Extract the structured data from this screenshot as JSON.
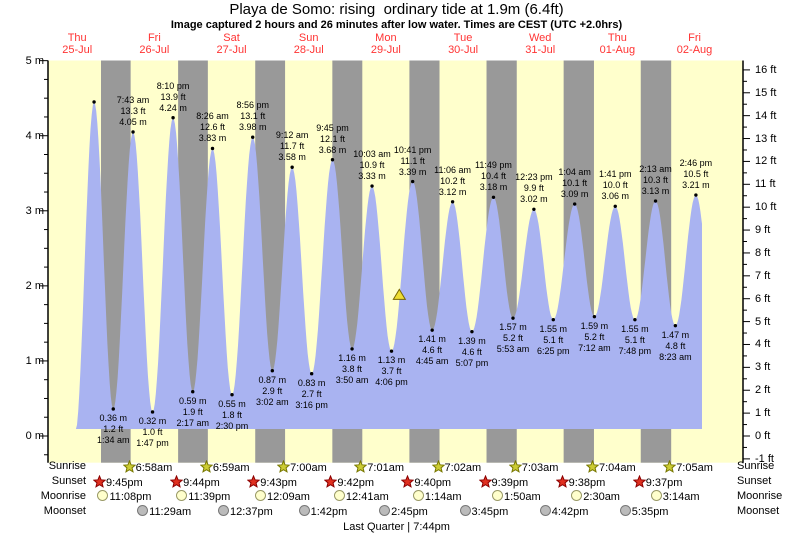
{
  "chart_data": {
    "type": "area",
    "title": "Playa de Somo: rising  ordinary tide at 1.9m (6.4ft)",
    "subtitle": "Image captured 2 hours and 26 minutes after low water. Times are CEST (UTC +2.0hrs)",
    "days": [
      {
        "day": "Thu",
        "date": "25-Jul"
      },
      {
        "day": "Fri",
        "date": "26-Jul"
      },
      {
        "day": "Sat",
        "date": "27-Jul"
      },
      {
        "day": "Sun",
        "date": "28-Jul"
      },
      {
        "day": "Mon",
        "date": "29-Jul"
      },
      {
        "day": "Tue",
        "date": "30-Jul"
      },
      {
        "day": "Wed",
        "date": "31-Jul"
      },
      {
        "day": "Thu",
        "date": "01-Aug"
      },
      {
        "day": "Fri",
        "date": "02-Aug"
      }
    ],
    "y_axis_left": {
      "unit": "m",
      "ticks": [
        "5 m",
        "4 m",
        "3 m",
        "2 m",
        "1 m",
        "0 m"
      ],
      "values": [
        5,
        4,
        3,
        2,
        1,
        0
      ]
    },
    "y_axis_right": {
      "unit": "ft",
      "ticks": [
        "16 ft",
        "15 ft",
        "14 ft",
        "13 ft",
        "12 ft",
        "11 ft",
        "10 ft",
        "9 ft",
        "8 ft",
        "7 ft",
        "6 ft",
        "5 ft",
        "4 ft",
        "3 ft",
        "2 ft",
        "1 ft",
        "0 ft",
        "-1 ft"
      ],
      "values": [
        16,
        15,
        14,
        13,
        12,
        11,
        10,
        9,
        8,
        7,
        6,
        5,
        4,
        3,
        2,
        1,
        0,
        -1
      ]
    },
    "tide_events": [
      {
        "type": "high",
        "t": 19.6,
        "m": 4.45
      },
      {
        "type": "low",
        "t": 25.567,
        "m": 0.36,
        "labels": [
          "0.36 m",
          "1.2 ft",
          "1:34 am"
        ]
      },
      {
        "type": "high",
        "t": 31.717,
        "m": 4.05,
        "labels": [
          "7:43 am",
          "13.3 ft",
          "4.05 m"
        ]
      },
      {
        "type": "low",
        "t": 37.783,
        "m": 0.32,
        "labels": [
          "0.32 m",
          "1.0 ft",
          "1:47 pm"
        ]
      },
      {
        "type": "high",
        "t": 44.167,
        "m": 4.24,
        "labels": [
          "8:10 pm",
          "13.9 ft",
          "4.24 m"
        ]
      },
      {
        "type": "low",
        "t": 50.283,
        "m": 0.59,
        "labels": [
          "0.59 m",
          "1.9 ft",
          "2:17 am"
        ]
      },
      {
        "type": "high",
        "t": 56.433,
        "m": 3.83,
        "labels": [
          "8:26 am",
          "12.6 ft",
          "3.83 m"
        ]
      },
      {
        "type": "low",
        "t": 62.5,
        "m": 0.55,
        "labels": [
          "0.55 m",
          "1.8 ft",
          "2:30 pm"
        ]
      },
      {
        "type": "high",
        "t": 68.933,
        "m": 3.98,
        "labels": [
          "8:56 pm",
          "13.1 ft",
          "3.98 m"
        ]
      },
      {
        "type": "low",
        "t": 75.033,
        "m": 0.87,
        "labels": [
          "0.87 m",
          "2.9 ft",
          "3:02 am"
        ]
      },
      {
        "type": "high",
        "t": 81.2,
        "m": 3.58,
        "labels": [
          "9:12 am",
          "11.7 ft",
          "3.58 m"
        ]
      },
      {
        "type": "low",
        "t": 87.267,
        "m": 0.83,
        "labels": [
          "0.83 m",
          "2.7 ft",
          "3:16 pm"
        ]
      },
      {
        "type": "high",
        "t": 93.75,
        "m": 3.68,
        "labels": [
          "9:45 pm",
          "12.1 ft",
          "3.68 m"
        ]
      },
      {
        "type": "low",
        "t": 99.833,
        "m": 1.16,
        "labels": [
          "1.16 m",
          "3.8 ft",
          "3:50 am"
        ]
      },
      {
        "type": "high",
        "t": 106.05,
        "m": 3.33,
        "labels": [
          "10:03 am",
          "10.9 ft",
          "3.33 m"
        ]
      },
      {
        "type": "low",
        "t": 112.1,
        "m": 1.13,
        "labels": [
          "1.13 m",
          "3.7 ft",
          "4:06 pm"
        ]
      },
      {
        "type": "high",
        "t": 118.683,
        "m": 3.39,
        "labels": [
          "10:41 pm",
          "11.1 ft",
          "3.39 m"
        ]
      },
      {
        "type": "low",
        "t": 124.75,
        "m": 1.41,
        "labels": [
          "1.41 m",
          "4.6 ft",
          "4:45 am"
        ]
      },
      {
        "type": "high",
        "t": 131.1,
        "m": 3.12,
        "labels": [
          "11:06 am",
          "10.2 ft",
          "3.12 m"
        ]
      },
      {
        "type": "low",
        "t": 137.117,
        "m": 1.39,
        "labels": [
          "1.39 m",
          "4.6 ft",
          "5:07 pm"
        ]
      },
      {
        "type": "high",
        "t": 143.817,
        "m": 3.18,
        "labels": [
          "11:49 pm",
          "10.4 ft",
          "3.18 m"
        ]
      },
      {
        "type": "low",
        "t": 149.883,
        "m": 1.57,
        "labels": [
          "1.57 m",
          "5.2 ft",
          "5:53 am"
        ]
      },
      {
        "type": "high",
        "t": 156.383,
        "m": 3.02,
        "labels": [
          "12:23 pm",
          "9.9 ft",
          "3.02 m"
        ]
      },
      {
        "type": "low",
        "t": 162.417,
        "m": 1.55,
        "labels": [
          "1.55 m",
          "5.1 ft",
          "6:25 pm"
        ]
      },
      {
        "type": "high",
        "t": 169.067,
        "m": 3.09,
        "labels": [
          "1:04 am",
          "10.1 ft",
          "3.09 m"
        ]
      },
      {
        "type": "low",
        "t": 175.2,
        "m": 1.59,
        "labels": [
          "1.59 m",
          "5.2 ft",
          "7:12 am"
        ]
      },
      {
        "type": "high",
        "t": 181.683,
        "m": 3.06,
        "labels": [
          "1:41 pm",
          "10.0 ft",
          "3.06 m"
        ]
      },
      {
        "type": "low",
        "t": 187.8,
        "m": 1.55,
        "labels": [
          "1.55 m",
          "5.1 ft",
          "7:48 pm"
        ]
      },
      {
        "type": "high",
        "t": 194.217,
        "m": 3.13,
        "labels": [
          "2:13 am",
          "10.3 ft",
          "3.13 m"
        ]
      },
      {
        "type": "low",
        "t": 200.383,
        "m": 1.47,
        "labels": [
          "1.47 m",
          "4.8 ft",
          "8:23 am"
        ]
      },
      {
        "type": "high",
        "t": 206.767,
        "m": 3.21,
        "labels": [
          "2:46 pm",
          "10.5 ft",
          "3.21 m"
        ]
      }
    ],
    "current_marker": {
      "t": 114.53,
      "level_m": 1.9
    },
    "sun_moon": {
      "captions": [
        "Sunrise",
        "Sunset",
        "Moonrise",
        "Moonset"
      ],
      "rows": [
        {
          "name": "sunrise",
          "icon": "sunrise-star",
          "entries": [
            {
              "t": 30.967,
              "label": "6:58am"
            },
            {
              "t": 54.983,
              "label": "6:59am"
            },
            {
              "t": 79.0,
              "label": "7:00am"
            },
            {
              "t": 103.017,
              "label": "7:01am"
            },
            {
              "t": 127.033,
              "label": "7:02am"
            },
            {
              "t": 151.05,
              "label": "7:03am"
            },
            {
              "t": 175.067,
              "label": "7:04am"
            },
            {
              "t": 199.083,
              "label": "7:05am"
            }
          ]
        },
        {
          "name": "sunset",
          "icon": "sunset-star",
          "entries": [
            {
              "t": 21.75,
              "label": "9:45pm"
            },
            {
              "t": 45.733,
              "label": "9:44pm"
            },
            {
              "t": 69.717,
              "label": "9:43pm"
            },
            {
              "t": 93.7,
              "label": "9:42pm"
            },
            {
              "t": 117.667,
              "label": "9:40pm"
            },
            {
              "t": 141.65,
              "label": "9:39pm"
            },
            {
              "t": 165.633,
              "label": "9:38pm"
            },
            {
              "t": 189.617,
              "label": "9:37pm"
            }
          ]
        },
        {
          "name": "moonrise",
          "icon": "moonrise-circle",
          "entries": [
            {
              "t": 23.133,
              "label": "11:08pm"
            },
            {
              "t": 47.65,
              "label": "11:39pm"
            },
            {
              "t": 72.15,
              "label": "12:09am"
            },
            {
              "t": 96.683,
              "label": "12:41am"
            },
            {
              "t": 121.233,
              "label": "1:14am"
            },
            {
              "t": 145.833,
              "label": "1:50am"
            },
            {
              "t": 170.5,
              "label": "2:30am"
            },
            {
              "t": 195.233,
              "label": "3:14am"
            }
          ]
        },
        {
          "name": "moonset",
          "icon": "moonset-circle",
          "entries": [
            {
              "t": 35.483,
              "label": "11:29am"
            },
            {
              "t": 60.617,
              "label": "12:37pm"
            },
            {
              "t": 85.7,
              "label": "1:42pm"
            },
            {
              "t": 110.75,
              "label": "2:45pm"
            },
            {
              "t": 135.75,
              "label": "3:45pm"
            },
            {
              "t": 160.7,
              "label": "4:42pm"
            },
            {
              "t": 185.583,
              "label": "5:35pm"
            }
          ]
        }
      ]
    },
    "moon_phase": "Last Quarter | 7:44pm",
    "colors": {
      "day_band": "#ffffcc",
      "night_band": "#999999",
      "tide_fill": "#a9b3f1",
      "date_red": "#ff3333",
      "axis": "#000000",
      "sunrise_star_fill": "#cccc33",
      "sunrise_star_stroke": "#777700",
      "sunset_star_fill": "#e03020",
      "sunset_star_stroke": "#8b0000",
      "moonrise_fill": "#ffffcc",
      "moonrise_stroke": "#999966",
      "moonset_fill": "#bbbbbb",
      "moonset_stroke": "#777777",
      "marker_fill": "#eedd33",
      "marker_stroke": "#776600"
    }
  }
}
